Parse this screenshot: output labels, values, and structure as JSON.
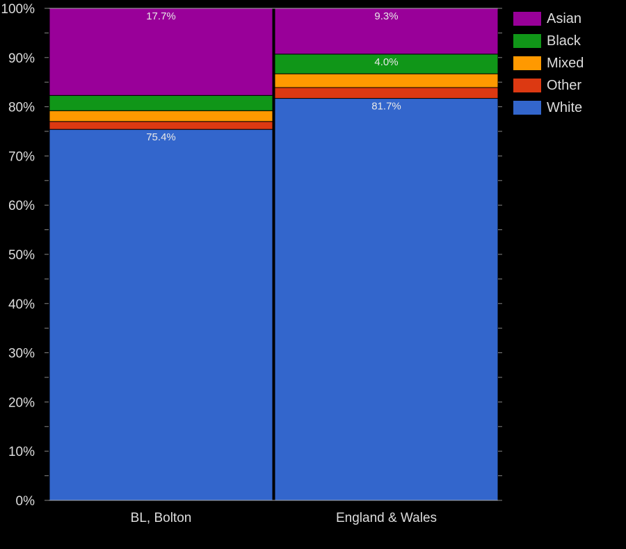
{
  "chart_data": {
    "type": "bar",
    "stacked": true,
    "title": "",
    "xlabel": "",
    "ylabel": "",
    "ylim": [
      0,
      100
    ],
    "yticks": [
      "0%",
      "10%",
      "20%",
      "30%",
      "40%",
      "50%",
      "60%",
      "70%",
      "80%",
      "90%",
      "100%"
    ],
    "categories": [
      "BL, Bolton",
      "England & Wales"
    ],
    "series": [
      {
        "name": "White",
        "color": "#3366cc",
        "values": [
          75.4,
          81.7
        ]
      },
      {
        "name": "Other",
        "color": "#dc3912",
        "values": [
          1.6,
          2.2
        ]
      },
      {
        "name": "Mixed",
        "color": "#ff9900",
        "values": [
          2.2,
          2.8
        ]
      },
      {
        "name": "Black",
        "color": "#109618",
        "values": [
          3.1,
          4.0
        ]
      },
      {
        "name": "Asian",
        "color": "#990099",
        "values": [
          17.7,
          9.3
        ]
      }
    ],
    "data_labels": [
      {
        "category": "BL, Bolton",
        "series": "Asian",
        "text": "17.7%"
      },
      {
        "category": "BL, Bolton",
        "series": "White",
        "text": "75.4%"
      },
      {
        "category": "England & Wales",
        "series": "Asian",
        "text": "9.3%"
      },
      {
        "category": "England & Wales",
        "series": "Black",
        "text": "4.0%"
      },
      {
        "category": "England & Wales",
        "series": "White",
        "text": "81.7%"
      }
    ],
    "legend": {
      "position": "right",
      "entries": [
        "Asian",
        "Black",
        "Mixed",
        "Other",
        "White"
      ]
    },
    "grid": false
  },
  "legend": {
    "items": [
      {
        "label": "Asian",
        "color": "#990099"
      },
      {
        "label": "Black",
        "color": "#109618"
      },
      {
        "label": "Mixed",
        "color": "#ff9900"
      },
      {
        "label": "Other",
        "color": "#dc3912"
      },
      {
        "label": "White",
        "color": "#3366cc"
      }
    ]
  }
}
